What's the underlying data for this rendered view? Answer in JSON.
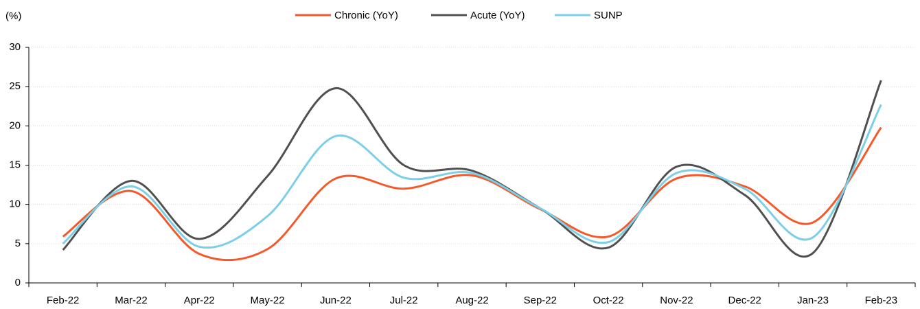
{
  "chart_data": {
    "type": "line",
    "y_unit_label": "(%)",
    "categories": [
      "Feb-22",
      "Mar-22",
      "Apr-22",
      "May-22",
      "Jun-22",
      "Jul-22",
      "Aug-22",
      "Sep-22",
      "Oct-22",
      "Nov-22",
      "Dec-22",
      "Jan-23",
      "Feb-23"
    ],
    "series": [
      {
        "name": "Chronic (YoY)",
        "color": "#f4592a",
        "values": [
          5.9,
          11.7,
          3.7,
          4.3,
          13.3,
          12.0,
          13.7,
          9.4,
          5.9,
          13.3,
          12.3,
          7.7,
          19.8
        ]
      },
      {
        "name": "Acute (YoY)",
        "color": "#505050",
        "values": [
          4.2,
          13.0,
          5.6,
          13.6,
          24.8,
          15.0,
          14.3,
          9.5,
          4.5,
          14.8,
          11.2,
          3.8,
          25.8
        ]
      },
      {
        "name": "SUNP",
        "color": "#7ccfe6",
        "values": [
          5.0,
          12.3,
          4.6,
          8.5,
          18.7,
          13.4,
          14.0,
          9.5,
          5.2,
          14.0,
          12.0,
          5.8,
          22.7
        ]
      }
    ],
    "ylim": [
      0,
      30
    ],
    "yticks": [
      0,
      5,
      10,
      15,
      20,
      25,
      30
    ],
    "grid": true,
    "smooth": true,
    "legend": "top"
  }
}
